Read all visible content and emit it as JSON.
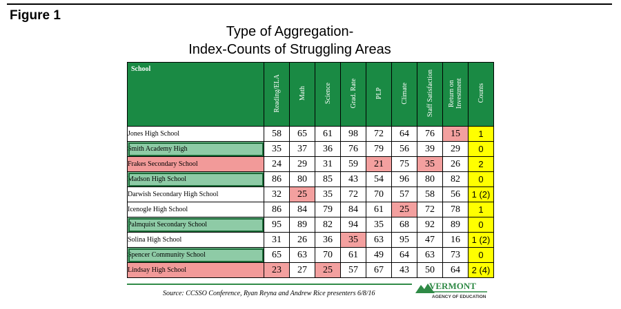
{
  "figure_label": "Figure 1",
  "title_line1": "Type of Aggregation-",
  "title_line2": "Index-Counts of Struggling Areas",
  "table": {
    "school_header": "School",
    "columns": [
      "Reading/ELA",
      "Math",
      "Science",
      "Grad. Rate",
      "PLP",
      "Climate",
      "Staff Satisfaction",
      "Return on Investment",
      "Counts"
    ],
    "rows": [
      {
        "name": "Jones High School",
        "highlight": "none",
        "values": [
          58,
          65,
          61,
          98,
          72,
          64,
          76,
          15
        ],
        "red": [
          7
        ],
        "count": "1"
      },
      {
        "name": "Smith Academy High",
        "highlight": "green",
        "values": [
          35,
          37,
          36,
          76,
          79,
          56,
          39,
          29
        ],
        "red": [],
        "count": "0"
      },
      {
        "name": "Frakes Secondary School",
        "highlight": "red",
        "values": [
          24,
          29,
          31,
          59,
          21,
          75,
          35,
          26
        ],
        "red": [
          4,
          6
        ],
        "count": "2"
      },
      {
        "name": "Madson High School",
        "highlight": "green",
        "values": [
          86,
          80,
          85,
          43,
          54,
          96,
          80,
          82
        ],
        "red": [],
        "count": "0"
      },
      {
        "name": "Darwish Secondary High School",
        "highlight": "none",
        "values": [
          32,
          25,
          35,
          72,
          70,
          57,
          58,
          56
        ],
        "red": [
          1
        ],
        "count": "1 (2)"
      },
      {
        "name": "Icenogle High School",
        "highlight": "none",
        "values": [
          86,
          84,
          79,
          84,
          61,
          25,
          72,
          78
        ],
        "red": [
          5
        ],
        "count": "1"
      },
      {
        "name": "Palmquist Secondary School",
        "highlight": "green",
        "values": [
          95,
          89,
          82,
          94,
          35,
          68,
          92,
          89
        ],
        "red": [],
        "count": "0"
      },
      {
        "name": "Solina High School",
        "highlight": "none",
        "values": [
          31,
          26,
          36,
          35,
          63,
          95,
          47,
          16
        ],
        "red": [
          3
        ],
        "count": "1 (2)"
      },
      {
        "name": "Spencer Community School",
        "highlight": "green",
        "values": [
          65,
          63,
          70,
          61,
          49,
          64,
          63,
          73
        ],
        "red": [],
        "count": "0"
      },
      {
        "name": "Lindsay High School",
        "highlight": "red",
        "values": [
          23,
          27,
          25,
          57,
          67,
          43,
          50,
          64
        ],
        "red": [
          0,
          2
        ],
        "count": "2 (4)"
      }
    ]
  },
  "source_text": "Source:  CCSSO Conference, Ryan Reyna and Andrew Rice presenters 6/8/16",
  "logo": {
    "word": "VERMONT",
    "sub": "AGENCY OF EDUCATION"
  },
  "colors": {
    "header_green": "#1a8a44",
    "highlight_red": "#f3a09f",
    "highlight_green": "#8ecba6",
    "count_yellow": "#ffff00"
  }
}
